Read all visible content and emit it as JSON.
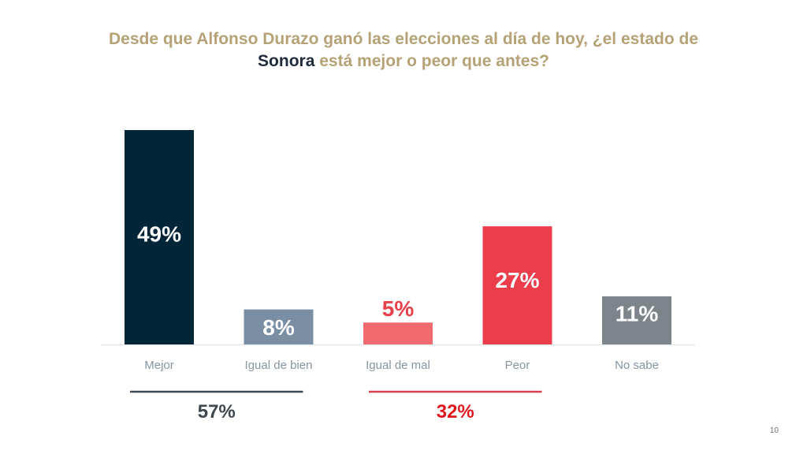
{
  "chart_data": {
    "type": "bar",
    "title_parts": [
      "Desde que Alfonso Durazo ganó las elecciones al día de hoy, ¿el estado de",
      "Sonora",
      "está mejor o peor que antes?"
    ],
    "categories": [
      "Mejor",
      "Igual de bien",
      "Igual de mal",
      "Peor",
      "No sabe"
    ],
    "values": [
      49,
      8,
      5,
      27,
      11
    ],
    "value_labels": [
      "49%",
      "8%",
      "5%",
      "27%",
      "11%"
    ],
    "colors": [
      "#022638",
      "#7a8fa3",
      "#f06a70",
      "#ec3e4a",
      "#7d848b"
    ],
    "label_colors": [
      "#ffffff",
      "#ffffff",
      "#e8414b",
      "#ffffff",
      "#ffffff"
    ],
    "label_outside": [
      false,
      false,
      true,
      false,
      false
    ],
    "xlabel": "",
    "ylabel": "",
    "ylim": [
      0,
      50
    ],
    "grid": false,
    "groups": [
      {
        "label": "57%",
        "from": 0,
        "to": 1,
        "color": "#3d4a55",
        "text_color": "#3d4750"
      },
      {
        "label": "32%",
        "from": 2,
        "to": 3,
        "color": "#d9424c",
        "text_color": "#e0161f"
      }
    ]
  },
  "page_number": "10"
}
